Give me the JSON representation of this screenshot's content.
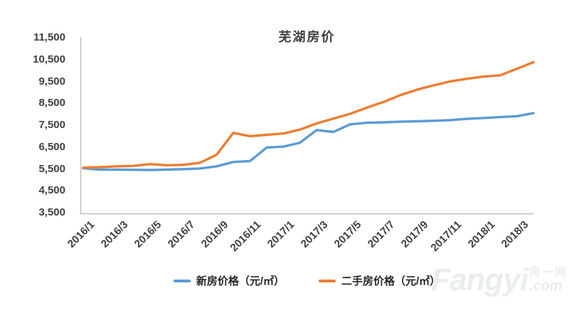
{
  "title": "芜湖房价",
  "colors": {
    "new_house_line": "#5B9BD5",
    "second_hand_line": "#ED7D31",
    "axis": "#BFBFBF",
    "tick_text": "#404040",
    "title_text": "#3F3F3F"
  },
  "y_axis": {
    "labels": [
      "11,500",
      "10,500",
      "9,500",
      "8,500",
      "7,500",
      "6,500",
      "5,500",
      "4,500",
      "3,500"
    ],
    "min": 3500,
    "max": 11500,
    "step": 1000
  },
  "x_axis": {
    "tick_labels": [
      "2016/1",
      "2016/3",
      "2016/5",
      "2016/7",
      "2016/9",
      "2016/11",
      "2017/1",
      "2017/3",
      "2017/5",
      "2017/7",
      "2017/9",
      "2017/11",
      "2018/1",
      "2018/3"
    ]
  },
  "legend": [
    {
      "label": "新房价格（元/㎡）",
      "color": "#5B9BD5"
    },
    {
      "label": "二手房价格（元/㎡）",
      "color": "#ED7D31"
    }
  ],
  "watermark": {
    "brand": "Fangyi",
    "cn": "房一网",
    "com": ".com"
  },
  "chart_data": {
    "type": "line",
    "title": "芜湖房价",
    "x": [
      "2016/1",
      "2016/2",
      "2016/3",
      "2016/4",
      "2016/5",
      "2016/6",
      "2016/7",
      "2016/8",
      "2016/9",
      "2016/10",
      "2016/11",
      "2016/12",
      "2017/1",
      "2017/2",
      "2017/3",
      "2017/4",
      "2017/5",
      "2017/6",
      "2017/7",
      "2017/8",
      "2017/9",
      "2017/10",
      "2017/11",
      "2017/12",
      "2018/1",
      "2018/2",
      "2018/3",
      "2018/4"
    ],
    "series": [
      {
        "name": "新房价格（元/㎡）",
        "color": "#5B9BD5",
        "values": [
          5530,
          5470,
          5470,
          5460,
          5450,
          5470,
          5490,
          5520,
          5620,
          5820,
          5860,
          6480,
          6520,
          6700,
          7280,
          7190,
          7540,
          7610,
          7630,
          7660,
          7680,
          7700,
          7730,
          7790,
          7830,
          7870,
          7910,
          8050
        ]
      },
      {
        "name": "二手房价格（元/㎡）",
        "color": "#ED7D31",
        "values": [
          5560,
          5580,
          5620,
          5640,
          5720,
          5670,
          5690,
          5780,
          6150,
          7150,
          7000,
          7060,
          7120,
          7300,
          7580,
          7800,
          8020,
          8300,
          8560,
          8870,
          9120,
          9320,
          9500,
          9620,
          9720,
          9780,
          10080,
          10380
        ]
      }
    ],
    "ylim": [
      3500,
      11500
    ],
    "ytick_step": 1000,
    "xtick_every": 2,
    "grid": false,
    "legend_position": "bottom"
  }
}
